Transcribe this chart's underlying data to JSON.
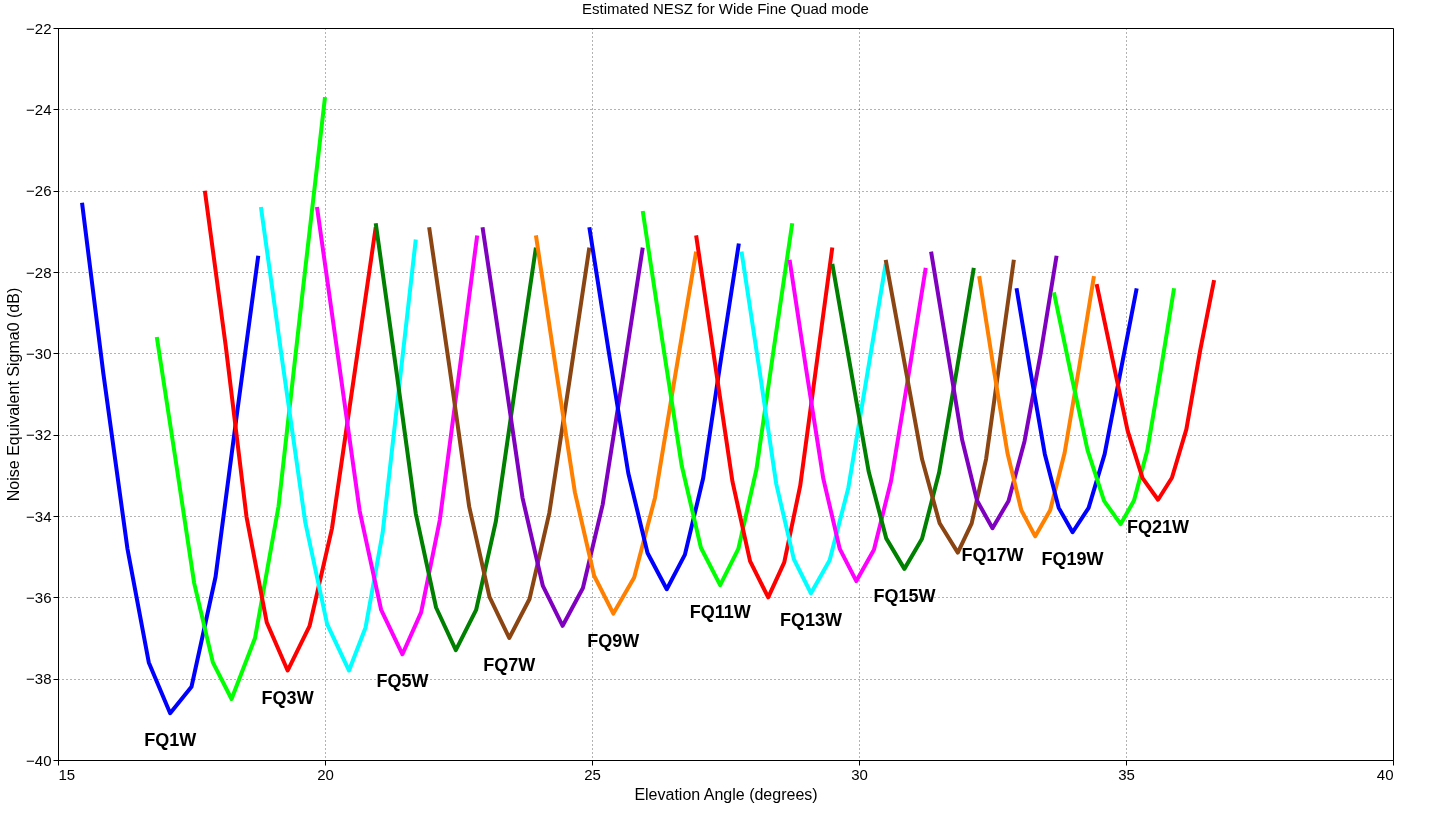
{
  "chart_data": {
    "type": "line",
    "title": "Estimated NESZ for Wide Fine Quad mode",
    "xlabel": "Elevation Angle (degrees)",
    "ylabel": "Noise Equivalent Sigma0 (dB)",
    "xlim": [
      15,
      40
    ],
    "xticks": [
      15,
      20,
      25,
      30,
      35,
      40
    ],
    "ylim": [
      -40,
      -22
    ],
    "yticks": [
      -40,
      -38,
      -36,
      -34,
      -32,
      -30,
      -28,
      -26,
      -24,
      -22
    ],
    "grid": true,
    "marker": "none",
    "line_style": "solid",
    "series": [
      {
        "color": "#0000ff",
        "x": [
          15.45,
          15.85,
          16.3,
          16.7,
          17.1,
          17.5,
          17.95,
          18.35,
          18.75
        ],
        "values": [
          -26.3,
          -30.5,
          -34.8,
          -37.6,
          -38.85,
          -38.2,
          -35.5,
          -31.5,
          -27.6
        ]
      },
      {
        "color": "#00ff00",
        "x": [
          16.85,
          17.2,
          17.55,
          17.9,
          18.25,
          18.69,
          19.13,
          19.56,
          20.0
        ],
        "values": [
          -29.6,
          -32.6,
          -35.65,
          -37.6,
          -38.5,
          -37.0,
          -33.76,
          -28.73,
          -23.7
        ]
      },
      {
        "color": "#ff0000",
        "x": [
          17.75,
          18.14,
          18.53,
          18.91,
          19.3,
          19.71,
          20.13,
          20.54,
          20.95
        ],
        "values": [
          -26.0,
          -29.81,
          -34.02,
          -36.62,
          -37.8,
          -36.71,
          -34.31,
          -30.61,
          -26.9
        ]
      },
      {
        "color": "#00ffff",
        "x": [
          18.8,
          19.21,
          19.63,
          20.04,
          20.45,
          20.76,
          21.08,
          21.39,
          21.7
        ],
        "values": [
          -26.4,
          -30.28,
          -34.15,
          -36.66,
          -37.8,
          -36.74,
          -34.41,
          -30.8,
          -27.2
        ]
      },
      {
        "color": "#ff00ff",
        "x": [
          19.85,
          20.25,
          20.65,
          21.05,
          21.45,
          21.8,
          22.15,
          22.5,
          22.85
        ],
        "values": [
          -26.4,
          -30.14,
          -33.88,
          -36.3,
          -37.4,
          -36.37,
          -34.1,
          -30.6,
          -27.1
        ]
      },
      {
        "color": "#008000",
        "x": [
          20.95,
          21.33,
          21.7,
          22.08,
          22.45,
          22.83,
          23.2,
          23.58,
          23.95
        ],
        "values": [
          -26.8,
          -30.37,
          -33.94,
          -36.25,
          -37.3,
          -36.31,
          -34.13,
          -30.67,
          -27.4
        ]
      },
      {
        "color": "#8b4513",
        "x": [
          21.95,
          22.33,
          22.7,
          23.08,
          23.45,
          23.83,
          24.2,
          24.58,
          24.95
        ],
        "values": [
          -26.9,
          -30.33,
          -33.77,
          -35.99,
          -37.0,
          -36.04,
          -33.93,
          -30.66,
          -27.4
        ]
      },
      {
        "color": "#8000c0",
        "x": [
          22.95,
          23.33,
          23.7,
          24.08,
          24.45,
          24.83,
          25.2,
          25.58,
          25.95
        ],
        "values": [
          -26.9,
          -30.23,
          -33.56,
          -35.72,
          -36.7,
          -35.77,
          -33.72,
          -30.56,
          -27.4
        ]
      },
      {
        "color": "#ff8000",
        "x": [
          23.95,
          24.31,
          24.68,
          25.04,
          25.4,
          25.79,
          26.18,
          26.56,
          26.95
        ],
        "values": [
          -27.1,
          -30.26,
          -33.42,
          -35.47,
          -36.4,
          -35.51,
          -33.55,
          -30.53,
          -27.5
        ]
      },
      {
        "color": "#0000ff",
        "x": [
          24.95,
          25.31,
          25.68,
          26.04,
          26.4,
          26.74,
          27.08,
          27.41,
          27.75
        ],
        "values": [
          -26.9,
          -29.93,
          -32.95,
          -34.91,
          -35.8,
          -34.95,
          -33.08,
          -30.19,
          -27.3
        ]
      },
      {
        "color": "#00ff00",
        "x": [
          25.95,
          26.31,
          26.68,
          27.04,
          27.4,
          27.74,
          28.08,
          28.41,
          28.75
        ],
        "values": [
          -26.5,
          -29.63,
          -32.76,
          -34.78,
          -35.7,
          -34.81,
          -32.85,
          -29.83,
          -26.8
        ]
      },
      {
        "color": "#ff0000",
        "x": [
          26.95,
          27.29,
          27.63,
          27.96,
          28.3,
          28.6,
          28.9,
          29.2,
          29.5
        ],
        "values": [
          -27.1,
          -30.13,
          -33.15,
          -35.11,
          -36.0,
          -35.14,
          -33.25,
          -30.32,
          -27.4
        ]
      },
      {
        "color": "#00ffff",
        "x": [
          27.8,
          28.13,
          28.45,
          28.78,
          29.1,
          29.45,
          29.8,
          30.15,
          30.5
        ],
        "values": [
          -27.5,
          -30.36,
          -33.21,
          -35.06,
          -35.9,
          -35.09,
          -33.31,
          -30.55,
          -27.8
        ]
      },
      {
        "color": "#ff00ff",
        "x": [
          28.7,
          29.01,
          29.33,
          29.64,
          29.95,
          30.28,
          30.6,
          30.93,
          31.25
        ],
        "values": [
          -27.7,
          -30.39,
          -33.07,
          -34.81,
          -35.6,
          -34.83,
          -33.14,
          -30.52,
          -27.9
        ]
      },
      {
        "color": "#008000",
        "x": [
          29.5,
          29.84,
          30.18,
          30.51,
          30.85,
          31.18,
          31.5,
          31.83,
          32.15
        ],
        "values": [
          -27.8,
          -30.35,
          -32.9,
          -34.55,
          -35.3,
          -34.56,
          -32.93,
          -30.42,
          -27.9
        ]
      },
      {
        "color": "#8b4513",
        "x": [
          30.5,
          30.84,
          31.18,
          31.51,
          31.85,
          32.11,
          32.38,
          32.64,
          32.9
        ],
        "values": [
          -27.7,
          -30.15,
          -32.6,
          -34.18,
          -34.9,
          -34.18,
          -32.6,
          -30.15,
          -27.7
        ]
      },
      {
        "color": "#8000c0",
        "x": [
          31.35,
          31.64,
          31.93,
          32.21,
          32.5,
          32.8,
          33.1,
          33.4,
          33.7
        ],
        "values": [
          -27.5,
          -29.81,
          -32.12,
          -33.62,
          -34.3,
          -33.63,
          -32.16,
          -30.02,
          -27.6
        ]
      },
      {
        "color": "#ff8000",
        "x": [
          32.25,
          32.51,
          32.78,
          33.04,
          33.3,
          33.58,
          33.85,
          34.13,
          34.4
        ],
        "values": [
          -28.1,
          -30.28,
          -32.45,
          -33.86,
          -34.5,
          -33.86,
          -32.45,
          -30.28,
          -28.1
        ]
      },
      {
        "color": "#0000ff",
        "x": [
          32.95,
          33.21,
          33.48,
          33.74,
          34.0,
          34.3,
          34.6,
          34.9,
          35.2
        ],
        "values": [
          -28.4,
          -30.44,
          -32.48,
          -33.8,
          -34.4,
          -33.8,
          -32.48,
          -30.44,
          -28.4
        ]
      },
      {
        "color": "#00ff00",
        "x": [
          33.65,
          33.96,
          34.28,
          34.59,
          34.9,
          35.15,
          35.4,
          35.65,
          35.9
        ],
        "values": [
          -28.5,
          -30.44,
          -32.38,
          -33.63,
          -34.2,
          -33.62,
          -32.38,
          -30.43,
          -28.4
        ]
      },
      {
        "color": "#ff0000",
        "x": [
          34.45,
          34.74,
          35.03,
          35.31,
          35.6,
          35.86,
          36.13,
          36.39,
          36.65
        ],
        "values": [
          -28.3,
          -30.1,
          -31.9,
          -33.07,
          -33.6,
          -33.06,
          -31.87,
          -29.92,
          -28.2
        ]
      }
    ],
    "annotations": [
      {
        "text": "FQ1W",
        "x": 17.1,
        "y": -38.85
      },
      {
        "text": "FQ3W",
        "x": 19.3,
        "y": -37.8
      },
      {
        "text": "FQ5W",
        "x": 21.45,
        "y": -37.4
      },
      {
        "text": "FQ7W",
        "x": 23.45,
        "y": -37.0
      },
      {
        "text": "FQ9W",
        "x": 25.4,
        "y": -36.4
      },
      {
        "text": "FQ11W",
        "x": 27.4,
        "y": -35.7
      },
      {
        "text": "FQ13W",
        "x": 29.1,
        "y": -35.9
      },
      {
        "text": "FQ15W",
        "x": 30.85,
        "y": -35.3
      },
      {
        "text": "FQ17W",
        "x": 32.5,
        "y": -34.3
      },
      {
        "text": "FQ19W",
        "x": 34.0,
        "y": -34.4
      },
      {
        "text": "FQ21W",
        "x": 35.6,
        "y": -33.6
      }
    ]
  }
}
